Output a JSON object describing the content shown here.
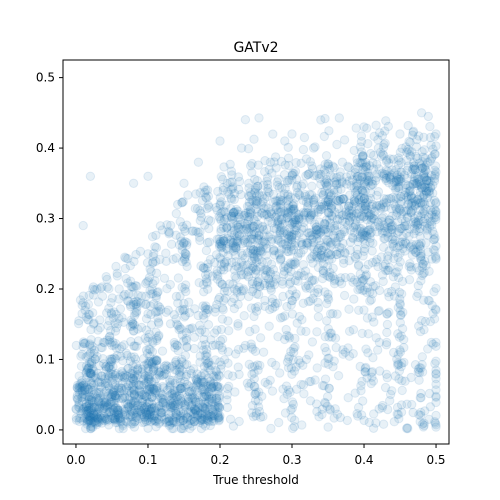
{
  "chart_data": {
    "type": "scatter",
    "title": "GATv2",
    "xlabel": "True threshold",
    "ylabel": "",
    "xlim": [
      -0.018,
      0.518
    ],
    "ylim": [
      -0.02,
      0.525
    ],
    "x_ticks": [
      "0.0",
      "0.1",
      "0.2",
      "0.3",
      "0.4",
      "0.5"
    ],
    "x_tick_values": [
      0.0,
      0.1,
      0.2,
      0.3,
      0.4,
      0.5
    ],
    "y_ticks": [
      "0.0",
      "0.1",
      "0.2",
      "0.3",
      "0.4",
      "0.5"
    ],
    "y_tick_values": [
      0.0,
      0.1,
      0.2,
      0.3,
      0.4,
      0.5
    ],
    "grid": false,
    "marker_color": "#1f77b4",
    "marker_alpha": 0.1,
    "series": [
      {
        "values": [
          {
            "x": 0.0,
            "y": 0.03
          },
          {
            "x": 0.01,
            "y": 0.05
          },
          {
            "x": 0.02,
            "y": 0.36
          },
          {
            "x": 0.01,
            "y": 0.29
          },
          {
            "x": 0.02,
            "y": 0.02
          },
          {
            "x": 0.03,
            "y": 0.08
          },
          {
            "x": 0.04,
            "y": 0.04
          },
          {
            "x": 0.05,
            "y": 0.12
          },
          {
            "x": 0.06,
            "y": 0.2
          },
          {
            "x": 0.07,
            "y": 0.06
          },
          {
            "x": 0.08,
            "y": 0.35
          },
          {
            "x": 0.09,
            "y": 0.18
          },
          {
            "x": 0.1,
            "y": 0.25
          },
          {
            "x": 0.1,
            "y": 0.36
          },
          {
            "x": 0.11,
            "y": 0.1
          },
          {
            "x": 0.12,
            "y": 0.05
          },
          {
            "x": 0.13,
            "y": 0.28
          },
          {
            "x": 0.14,
            "y": 0.15
          },
          {
            "x": 0.15,
            "y": 0.35
          },
          {
            "x": 0.16,
            "y": 0.08
          },
          {
            "x": 0.17,
            "y": 0.38
          },
          {
            "x": 0.18,
            "y": 0.22
          },
          {
            "x": 0.19,
            "y": 0.12
          },
          {
            "x": 0.2,
            "y": 0.41
          },
          {
            "x": 0.2,
            "y": 0.3
          },
          {
            "x": 0.21,
            "y": 0.05
          },
          {
            "x": 0.22,
            "y": 0.2
          },
          {
            "x": 0.23,
            "y": 0.4
          },
          {
            "x": 0.24,
            "y": 0.35
          },
          {
            "x": 0.25,
            "y": 0.02
          },
          {
            "x": 0.26,
            "y": 0.26
          },
          {
            "x": 0.27,
            "y": 0.38
          },
          {
            "x": 0.28,
            "y": 0.18
          },
          {
            "x": 0.29,
            "y": 0.41
          },
          {
            "x": 0.3,
            "y": 0.42
          },
          {
            "x": 0.31,
            "y": 0.3
          },
          {
            "x": 0.32,
            "y": 0.1
          },
          {
            "x": 0.33,
            "y": 0.4
          },
          {
            "x": 0.34,
            "y": 0.44
          },
          {
            "x": 0.35,
            "y": 0.25
          },
          {
            "x": 0.36,
            "y": 0.03
          },
          {
            "x": 0.37,
            "y": 0.38
          },
          {
            "x": 0.38,
            "y": 0.14
          },
          {
            "x": 0.39,
            "y": 0.35
          },
          {
            "x": 0.4,
            "y": 0.43
          },
          {
            "x": 0.41,
            "y": 0.28
          },
          {
            "x": 0.42,
            "y": 0.4
          },
          {
            "x": 0.43,
            "y": 0.06
          },
          {
            "x": 0.44,
            "y": 0.33
          },
          {
            "x": 0.45,
            "y": 0.42
          },
          {
            "x": 0.46,
            "y": 0.003
          },
          {
            "x": 0.47,
            "y": 0.3
          },
          {
            "x": 0.48,
            "y": 0.45
          },
          {
            "x": 0.49,
            "y": 0.35
          },
          {
            "x": 0.5,
            "y": 0.42
          },
          {
            "x": 0.5,
            "y": 0.08
          }
        ]
      }
    ]
  }
}
